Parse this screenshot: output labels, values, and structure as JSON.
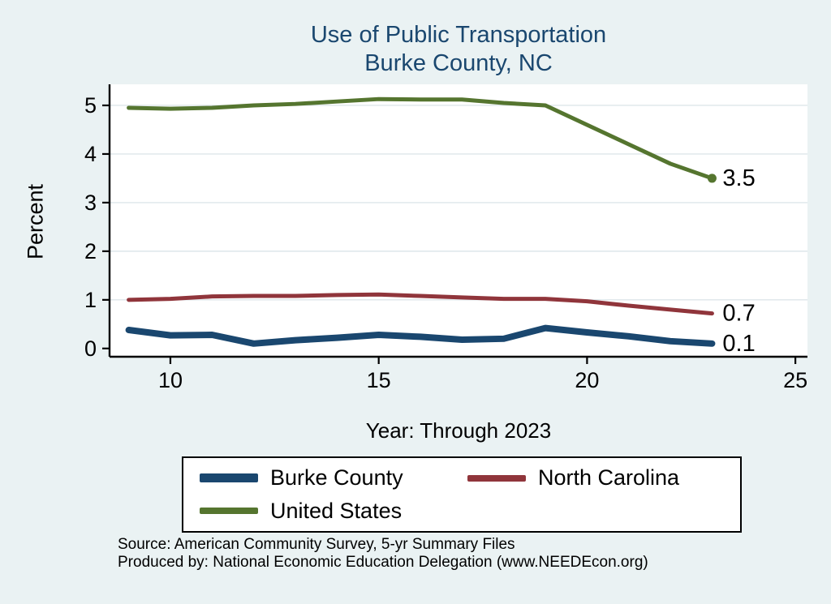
{
  "title": {
    "line1": "Use of Public Transportation",
    "line2": "Burke County, NC",
    "color": "#1a476f"
  },
  "axes": {
    "y_label": "Percent",
    "x_label": "Year: Through 2023"
  },
  "legend": {
    "items": [
      {
        "name": "Burke County",
        "color": "#1a476f",
        "swatch_height": 11
      },
      {
        "name": "North Carolina",
        "color": "#90353b",
        "swatch_height": 8
      },
      {
        "name": "United States",
        "color": "#55752f",
        "swatch_height": 8
      }
    ]
  },
  "footer": {
    "line1": "Source: American Community Survey, 5-yr Summary Files",
    "line2": "Produced by: National Economic Education Delegation (www.NEEDEcon.org)"
  },
  "chart_data": {
    "type": "line",
    "title": "Use of Public Transportation — Burke County, NC",
    "xlabel": "Year: Through 2023",
    "ylabel": "Percent",
    "x": [
      9,
      10,
      11,
      12,
      13,
      14,
      15,
      16,
      17,
      18,
      19,
      20,
      21,
      22,
      23
    ],
    "series": [
      {
        "name": "Burke County",
        "color": "#1a476f",
        "width": 8,
        "end_label": "0.1",
        "end_dot": false,
        "values": [
          0.38,
          0.27,
          0.28,
          0.1,
          0.17,
          0.22,
          0.28,
          0.24,
          0.18,
          0.2,
          0.42,
          0.33,
          0.25,
          0.15,
          0.1
        ]
      },
      {
        "name": "North Carolina",
        "color": "#90353b",
        "width": 5,
        "end_label": "0.7",
        "end_dot": false,
        "values": [
          1.0,
          1.02,
          1.07,
          1.08,
          1.08,
          1.1,
          1.11,
          1.08,
          1.05,
          1.02,
          1.02,
          0.97,
          0.88,
          0.8,
          0.72
        ]
      },
      {
        "name": "United States",
        "color": "#55752f",
        "width": 5,
        "end_label": "3.5",
        "end_dot": true,
        "values": [
          4.95,
          4.93,
          4.95,
          5.0,
          5.03,
          5.08,
          5.13,
          5.12,
          5.12,
          5.05,
          5.0,
          4.6,
          4.2,
          3.8,
          3.5
        ]
      }
    ],
    "xticks": [
      10,
      15,
      20,
      25
    ],
    "yticks": [
      0,
      1,
      2,
      3,
      4,
      5
    ],
    "xlim": [
      8.54,
      25.29
    ],
    "ylim": [
      -0.17,
      5.4
    ],
    "grid": true,
    "grid_color": "#dde6ea",
    "background": "#eaf2f3",
    "legend_position": "bottom"
  }
}
